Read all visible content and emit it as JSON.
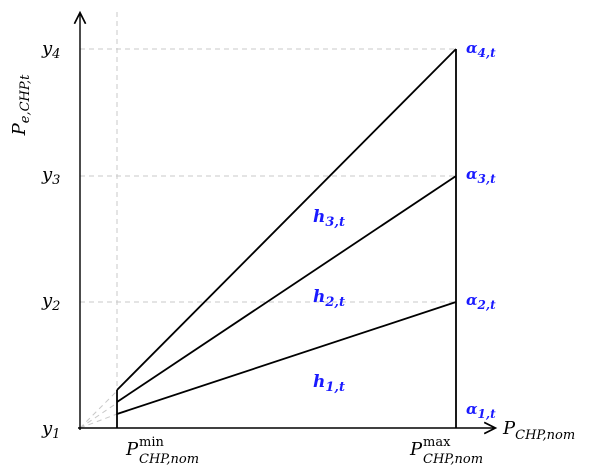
{
  "axes": {
    "y_label": "P",
    "y_label_sub": "e,CHP,t",
    "x_label": "P",
    "x_label_sub": "CHP,nom"
  },
  "y_ticks": [
    {
      "main": "y",
      "sub": "1"
    },
    {
      "main": "y",
      "sub": "2"
    },
    {
      "main": "y",
      "sub": "3"
    },
    {
      "main": "y",
      "sub": "4"
    }
  ],
  "x_ticks": [
    {
      "main": "P",
      "sup": "min",
      "sub": "CHP,nom"
    },
    {
      "main": "P",
      "sup": "max",
      "sub": "CHP,nom"
    }
  ],
  "alphas": [
    {
      "main": "α",
      "sub": "1,t"
    },
    {
      "main": "α",
      "sub": "2,t"
    },
    {
      "main": "α",
      "sub": "3,t"
    },
    {
      "main": "α",
      "sub": "4,t"
    }
  ],
  "regions": [
    {
      "main": "h",
      "sub": "1,t"
    },
    {
      "main": "h",
      "sub": "2,t"
    },
    {
      "main": "h",
      "sub": "3,t"
    }
  ],
  "colors": {
    "accent": "#1a1aff",
    "line": "#000000",
    "grid": "#c8c8c8"
  }
}
